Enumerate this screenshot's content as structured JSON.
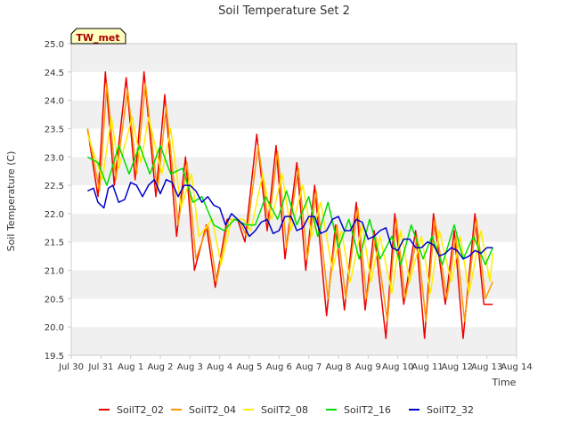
{
  "chart_data": {
    "type": "line",
    "title": "Soil Temperature Set 2",
    "xlabel": "Time",
    "ylabel": "Soil Temperature (C)",
    "site_label": "TW_met",
    "ylim": [
      19.5,
      25.0
    ],
    "xlim": [
      0,
      15
    ],
    "y_ticks": [
      "19.5",
      "20.0",
      "20.5",
      "21.0",
      "21.5",
      "22.0",
      "22.5",
      "23.0",
      "23.5",
      "24.0",
      "24.5",
      "25.0"
    ],
    "x_ticks": [
      "Jul 30",
      "Jul 31",
      "Aug 1",
      "Aug 2",
      "Aug 3",
      "Aug 4",
      "Aug 5",
      "Aug 6",
      "Aug 7",
      "Aug 8",
      "Aug 9",
      "Aug 10",
      "Aug 11",
      "Aug 12",
      "Aug 13",
      "Aug 14"
    ],
    "grid": "horizontal bands",
    "legend_position": "bottom",
    "colors": {
      "band": "#f0f0f0",
      "axis": "#cccccc",
      "label_box": "#ffffc0",
      "label_text": "#aa0000"
    },
    "series": [
      {
        "name": "SoilT2_02",
        "color": "#ee0000",
        "x": [
          0.55,
          0.9,
          1.15,
          1.45,
          1.85,
          2.15,
          2.45,
          2.85,
          3.15,
          3.55,
          3.85,
          4.15,
          4.55,
          4.85,
          5.25,
          5.6,
          5.85,
          6.25,
          6.6,
          6.9,
          7.2,
          7.6,
          7.9,
          8.2,
          8.6,
          8.9,
          9.2,
          9.6,
          9.9,
          10.2,
          10.6,
          10.9,
          11.2,
          11.6,
          11.9,
          12.2,
          12.6,
          12.9,
          13.2,
          13.6,
          13.9,
          14.2
        ],
        "values": [
          23.5,
          22.3,
          24.5,
          22.5,
          24.4,
          22.6,
          24.5,
          22.3,
          24.1,
          21.6,
          23.0,
          21.0,
          21.8,
          20.7,
          21.9,
          21.9,
          21.5,
          23.4,
          21.7,
          23.2,
          21.2,
          22.9,
          21.0,
          22.5,
          20.2,
          21.8,
          20.3,
          22.2,
          20.3,
          21.7,
          19.8,
          22.0,
          20.4,
          21.7,
          19.8,
          22.0,
          20.4,
          21.7,
          19.8,
          22.0,
          20.4,
          20.4
        ]
      },
      {
        "name": "SoilT2_04",
        "color": "#ff9900",
        "x": [
          0.55,
          0.95,
          1.2,
          1.5,
          1.9,
          2.2,
          2.5,
          2.9,
          3.2,
          3.6,
          3.9,
          4.2,
          4.6,
          4.9,
          5.3,
          5.65,
          5.9,
          6.3,
          6.65,
          6.95,
          7.25,
          7.65,
          7.95,
          8.25,
          8.65,
          8.95,
          9.25,
          9.65,
          9.95,
          10.25,
          10.65,
          10.95,
          11.25,
          11.65,
          11.95,
          12.25,
          12.65,
          12.95,
          13.25,
          13.65,
          13.95,
          14.2
        ],
        "values": [
          23.5,
          22.4,
          24.3,
          22.6,
          24.2,
          22.7,
          24.3,
          22.4,
          23.9,
          21.8,
          22.9,
          21.2,
          21.8,
          20.8,
          21.9,
          21.9,
          21.6,
          23.2,
          21.8,
          23.1,
          21.4,
          22.8,
          21.2,
          22.4,
          20.5,
          21.8,
          20.5,
          22.1,
          20.5,
          21.6,
          20.1,
          21.9,
          20.5,
          21.6,
          20.1,
          21.9,
          20.5,
          21.6,
          20.1,
          21.9,
          20.5,
          20.8
        ]
      },
      {
        "name": "SoilT2_08",
        "color": "#ffee00",
        "x": [
          0.55,
          1.05,
          1.35,
          1.6,
          2.05,
          2.35,
          2.6,
          3.05,
          3.35,
          3.7,
          4.05,
          4.3,
          4.75,
          5.05,
          5.4,
          5.8,
          6.05,
          6.45,
          6.75,
          7.1,
          7.4,
          7.8,
          8.1,
          8.4,
          8.8,
          9.1,
          9.4,
          9.8,
          10.1,
          10.4,
          10.8,
          11.1,
          11.4,
          11.8,
          12.1,
          12.4,
          12.8,
          13.1,
          13.4,
          13.8,
          14.1,
          14.2
        ],
        "values": [
          23.4,
          22.6,
          23.7,
          22.8,
          23.7,
          22.9,
          23.7,
          22.7,
          23.5,
          22.1,
          22.7,
          21.6,
          21.9,
          21.1,
          21.9,
          21.9,
          21.7,
          22.7,
          21.9,
          22.7,
          21.7,
          22.5,
          21.6,
          22.2,
          21.0,
          21.7,
          20.8,
          21.8,
          20.8,
          21.6,
          20.6,
          21.7,
          20.8,
          21.6,
          20.6,
          21.7,
          20.8,
          21.6,
          20.6,
          21.7,
          20.8,
          21.3
        ]
      },
      {
        "name": "SoilT2_16",
        "color": "#00dd00",
        "x": [
          0.55,
          0.9,
          1.2,
          1.6,
          1.95,
          2.3,
          2.65,
          3.0,
          3.35,
          3.75,
          4.1,
          4.4,
          4.8,
          5.15,
          5.5,
          5.9,
          6.2,
          6.55,
          6.95,
          7.25,
          7.6,
          8.0,
          8.3,
          8.65,
          9.0,
          9.35,
          9.7,
          10.05,
          10.4,
          10.8,
          11.1,
          11.45,
          11.85,
          12.15,
          12.5,
          12.9,
          13.2,
          13.55,
          13.95,
          14.2
        ],
        "values": [
          23.0,
          22.9,
          22.5,
          23.2,
          22.7,
          23.2,
          22.7,
          23.2,
          22.7,
          22.8,
          22.2,
          22.3,
          21.8,
          21.7,
          21.9,
          21.8,
          21.8,
          22.3,
          21.9,
          22.4,
          21.8,
          22.3,
          21.6,
          22.2,
          21.4,
          21.9,
          21.2,
          21.9,
          21.2,
          21.6,
          21.1,
          21.8,
          21.2,
          21.6,
          21.1,
          21.8,
          21.2,
          21.6,
          21.1,
          21.4
        ]
      },
      {
        "name": "SoilT2_32",
        "color": "#0000cc",
        "x": [
          0.55,
          0.75,
          0.9,
          1.1,
          1.25,
          1.4,
          1.6,
          1.8,
          2.0,
          2.2,
          2.4,
          2.6,
          2.8,
          3.0,
          3.2,
          3.4,
          3.6,
          3.8,
          4.0,
          4.2,
          4.4,
          4.6,
          4.8,
          5.0,
          5.2,
          5.4,
          5.6,
          5.8,
          6.0,
          6.2,
          6.4,
          6.6,
          6.8,
          7.0,
          7.2,
          7.4,
          7.6,
          7.8,
          8.0,
          8.2,
          8.4,
          8.6,
          8.8,
          9.0,
          9.2,
          9.4,
          9.6,
          9.8,
          10.0,
          10.2,
          10.4,
          10.6,
          10.8,
          11.0,
          11.2,
          11.4,
          11.6,
          11.8,
          12.0,
          12.2,
          12.4,
          12.6,
          12.8,
          13.0,
          13.2,
          13.4,
          13.6,
          13.8,
          14.0,
          14.2
        ],
        "values": [
          22.4,
          22.45,
          22.2,
          22.1,
          22.45,
          22.5,
          22.2,
          22.25,
          22.55,
          22.5,
          22.3,
          22.5,
          22.6,
          22.35,
          22.6,
          22.55,
          22.3,
          22.5,
          22.5,
          22.4,
          22.2,
          22.3,
          22.15,
          22.1,
          21.8,
          22.0,
          21.9,
          21.8,
          21.6,
          21.7,
          21.85,
          21.9,
          21.65,
          21.7,
          21.95,
          21.95,
          21.7,
          21.75,
          21.95,
          21.95,
          21.65,
          21.7,
          21.9,
          21.95,
          21.7,
          21.7,
          21.9,
          21.85,
          21.55,
          21.6,
          21.7,
          21.75,
          21.4,
          21.35,
          21.55,
          21.55,
          21.4,
          21.4,
          21.5,
          21.45,
          21.25,
          21.3,
          21.4,
          21.35,
          21.2,
          21.25,
          21.35,
          21.3,
          21.4,
          21.4
        ]
      }
    ]
  }
}
